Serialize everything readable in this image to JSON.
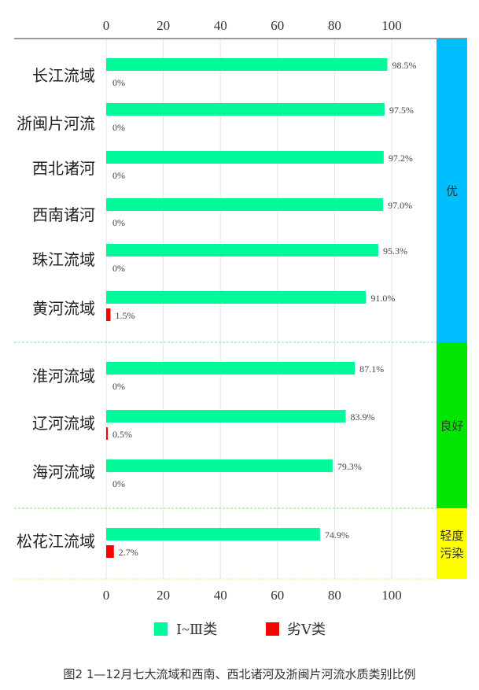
{
  "chart_data": {
    "type": "bar",
    "orientation": "horizontal",
    "categories": [
      "长江流域",
      "浙闽片河流",
      "西北诸河",
      "西南诸河",
      "珠江流域",
      "黄河流域",
      "淮河流域",
      "辽河流域",
      "海河流域",
      "松花江流域"
    ],
    "series": [
      {
        "name": "Ⅰ~Ⅲ类",
        "color": "#00fa9a",
        "values": [
          98.5,
          97.5,
          97.2,
          97.0,
          95.3,
          91.0,
          87.1,
          83.9,
          79.3,
          74.9
        ],
        "labels": [
          "98.5%",
          "97.5%",
          "97.2%",
          "97.0%",
          "95.3%",
          "91.0%",
          "87.1%",
          "83.9%",
          "79.3%",
          "74.9%"
        ]
      },
      {
        "name": "劣Ⅴ类",
        "color": "#ff0000",
        "values": [
          0,
          0,
          0,
          0,
          0,
          1.5,
          0,
          0.5,
          0,
          2.7
        ],
        "labels": [
          "0%",
          "0%",
          "0%",
          "0%",
          "0%",
          "1.5%",
          "0%",
          "0.5%",
          "0%",
          "2.7%"
        ]
      }
    ],
    "xlim": [
      0,
      100
    ],
    "xticks": [
      "0",
      "20",
      "40",
      "60",
      "80",
      "100"
    ],
    "grid": true,
    "legend": "bottom",
    "groups": [
      {
        "label": "优",
        "color": "#00bfff",
        "count": 6
      },
      {
        "label": "良好",
        "color": "#00e600",
        "count": 3
      },
      {
        "label": "轻度污染",
        "label_lines": [
          "轻度",
          "污染"
        ],
        "color": "#ffff00",
        "count": 1
      }
    ],
    "caption": "图2  1—12月七大流域和西南、西北诸河及浙闽片河流水质类别比例"
  }
}
